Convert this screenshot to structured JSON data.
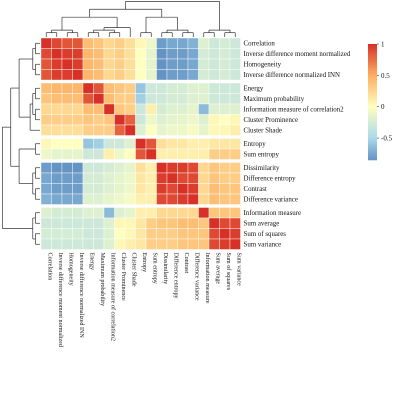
{
  "chart_data": {
    "type": "heatmap",
    "title": "",
    "variables": [
      "Correlation",
      "Inverse difference moment normalized",
      "Homogeneity",
      "Inverse difference normalized INN",
      "Energy",
      "Maximum probability",
      "Information measure of correlation2",
      "Cluster Prominence",
      "Cluster Shade",
      "Entropy",
      "Sum entropy",
      "Dissimilarity",
      "Difference entropy",
      "Contrast",
      "Difference variance",
      "Information measure",
      "Sum average",
      "Sum of squares",
      "Sum variance"
    ],
    "row_labels": [
      "Correlation",
      "Inverse difference moment normalized",
      "Homogeneity",
      "Inverse difference normalized INN",
      "Energy",
      "Maximum probability",
      "Information measure of correlation2",
      "Cluster Prominence",
      "Cluster Shade",
      "Entropy",
      "Sum entropy",
      "Dissimilarity",
      "Difference entropy",
      "Contrast",
      "Difference variance",
      "Information measure",
      "Sum average",
      "Sum of squares",
      "Sum variance"
    ],
    "col_labels": [
      "Correlation",
      "Inverse difference moment normalized",
      "Homogeneity",
      "Inverse difference normalized INN",
      "Energy",
      "Maximum probability",
      "Information measure of correlation2",
      "Cluster Prominence",
      "Cluster Shade",
      "Entropy",
      "Sum entropy",
      "Dissimilarity",
      "Difference entropy",
      "Contrast",
      "Difference variance",
      "Information measure",
      "Sum average",
      "Sum of squares",
      "Sum variance"
    ],
    "values": [
      [
        1.0,
        0.9,
        0.85,
        0.85,
        0.4,
        0.35,
        0.25,
        0.3,
        0.2,
        0.05,
        -0.1,
        -0.8,
        -0.75,
        -0.75,
        -0.7,
        -0.2,
        -0.3,
        -0.25,
        -0.3
      ],
      [
        0.9,
        1.0,
        0.95,
        0.95,
        0.45,
        0.4,
        0.25,
        0.3,
        0.2,
        0.0,
        -0.15,
        -0.85,
        -0.8,
        -0.8,
        -0.75,
        -0.25,
        -0.3,
        -0.25,
        -0.3
      ],
      [
        0.85,
        0.95,
        1.0,
        0.95,
        0.45,
        0.4,
        0.25,
        0.3,
        0.2,
        0.0,
        -0.15,
        -0.85,
        -0.8,
        -0.8,
        -0.75,
        -0.25,
        -0.3,
        -0.25,
        -0.3
      ],
      [
        0.85,
        0.95,
        0.95,
        1.0,
        0.45,
        0.4,
        0.25,
        0.3,
        0.2,
        0.0,
        -0.15,
        -0.85,
        -0.8,
        -0.8,
        -0.75,
        -0.25,
        -0.3,
        -0.25,
        -0.3
      ],
      [
        0.4,
        0.45,
        0.45,
        0.45,
        1.0,
        0.85,
        0.4,
        0.35,
        0.3,
        -0.6,
        -0.3,
        -0.3,
        -0.25,
        -0.25,
        -0.2,
        -0.2,
        -0.3,
        -0.3,
        -0.3
      ],
      [
        0.35,
        0.4,
        0.4,
        0.4,
        0.85,
        1.0,
        0.4,
        0.3,
        0.3,
        -0.55,
        -0.3,
        -0.3,
        -0.25,
        -0.25,
        -0.2,
        -0.2,
        -0.3,
        -0.3,
        -0.3
      ],
      [
        0.25,
        0.25,
        0.25,
        0.25,
        0.4,
        0.4,
        1.0,
        0.35,
        0.3,
        -0.3,
        0.1,
        -0.25,
        -0.2,
        -0.2,
        -0.15,
        -0.65,
        -0.2,
        -0.2,
        -0.2
      ],
      [
        0.3,
        0.3,
        0.3,
        0.3,
        0.35,
        0.3,
        0.35,
        1.0,
        0.8,
        -0.3,
        -0.1,
        -0.2,
        -0.15,
        -0.15,
        -0.1,
        -0.2,
        0.05,
        0.0,
        0.05
      ],
      [
        0.2,
        0.2,
        0.2,
        0.2,
        0.3,
        0.3,
        0.3,
        0.8,
        1.0,
        -0.2,
        0.0,
        -0.15,
        -0.1,
        -0.1,
        -0.05,
        -0.15,
        0.05,
        0.05,
        0.1
      ],
      [
        0.05,
        0.0,
        0.0,
        0.0,
        -0.6,
        -0.55,
        -0.3,
        -0.3,
        -0.2,
        1.0,
        0.85,
        0.2,
        0.15,
        0.15,
        0.1,
        0.1,
        0.15,
        0.15,
        0.15
      ],
      [
        -0.1,
        -0.15,
        -0.15,
        -0.15,
        -0.3,
        -0.3,
        0.1,
        -0.1,
        0.0,
        0.85,
        1.0,
        0.1,
        0.1,
        0.1,
        0.1,
        0.1,
        0.3,
        0.3,
        0.3
      ],
      [
        -0.8,
        -0.85,
        -0.85,
        -0.85,
        -0.3,
        -0.3,
        -0.25,
        -0.2,
        -0.15,
        0.2,
        0.1,
        1.0,
        0.95,
        0.95,
        0.9,
        0.25,
        0.35,
        0.3,
        0.3
      ],
      [
        -0.75,
        -0.8,
        -0.8,
        -0.8,
        -0.25,
        -0.25,
        -0.2,
        -0.15,
        -0.1,
        0.15,
        0.1,
        0.95,
        1.0,
        0.9,
        0.9,
        0.25,
        0.35,
        0.3,
        0.3
      ],
      [
        -0.75,
        -0.8,
        -0.8,
        -0.8,
        -0.25,
        -0.25,
        -0.2,
        -0.15,
        -0.1,
        0.15,
        0.1,
        0.95,
        0.9,
        1.0,
        0.95,
        0.25,
        0.4,
        0.35,
        0.35
      ],
      [
        -0.7,
        -0.75,
        -0.75,
        -0.75,
        -0.2,
        -0.2,
        -0.15,
        -0.1,
        -0.05,
        0.1,
        0.1,
        0.9,
        0.9,
        0.95,
        1.0,
        0.25,
        0.4,
        0.35,
        0.35
      ],
      [
        -0.2,
        -0.25,
        -0.25,
        -0.25,
        -0.2,
        -0.2,
        -0.65,
        -0.2,
        -0.15,
        0.1,
        0.1,
        0.25,
        0.25,
        0.25,
        0.25,
        1.0,
        0.35,
        0.35,
        0.35
      ],
      [
        -0.3,
        -0.3,
        -0.3,
        -0.3,
        -0.3,
        -0.3,
        -0.2,
        0.05,
        0.05,
        0.15,
        0.3,
        0.35,
        0.35,
        0.4,
        0.4,
        0.35,
        1.0,
        0.9,
        0.9
      ],
      [
        -0.25,
        -0.25,
        -0.25,
        -0.25,
        -0.3,
        -0.3,
        -0.2,
        0.0,
        0.05,
        0.15,
        0.3,
        0.3,
        0.3,
        0.35,
        0.35,
        0.35,
        0.9,
        1.0,
        0.95
      ],
      [
        -0.3,
        -0.3,
        -0.3,
        -0.3,
        -0.3,
        -0.3,
        -0.2,
        0.05,
        0.1,
        0.15,
        0.3,
        0.3,
        0.3,
        0.35,
        0.35,
        0.35,
        0.9,
        0.95,
        1.0
      ]
    ],
    "row_groups": [
      [
        0,
        3
      ],
      [
        4,
        8
      ],
      [
        9,
        10
      ],
      [
        11,
        14
      ],
      [
        15,
        18
      ]
    ],
    "colorbar": {
      "ticks": [
        1,
        0.5,
        0,
        -0.5
      ],
      "tick_labels": [
        "1",
        "0.5",
        "0",
        "-0.5"
      ],
      "range": [
        -0.85,
        1.0
      ],
      "colors": {
        "high": "#d73027",
        "mid_high": "#fdae61",
        "mid": "#ffffbf",
        "mid_low": "#abd9e9",
        "low": "#4575b4"
      }
    },
    "dendrogram": {
      "rows": true,
      "cols": true
    },
    "grid": false
  }
}
